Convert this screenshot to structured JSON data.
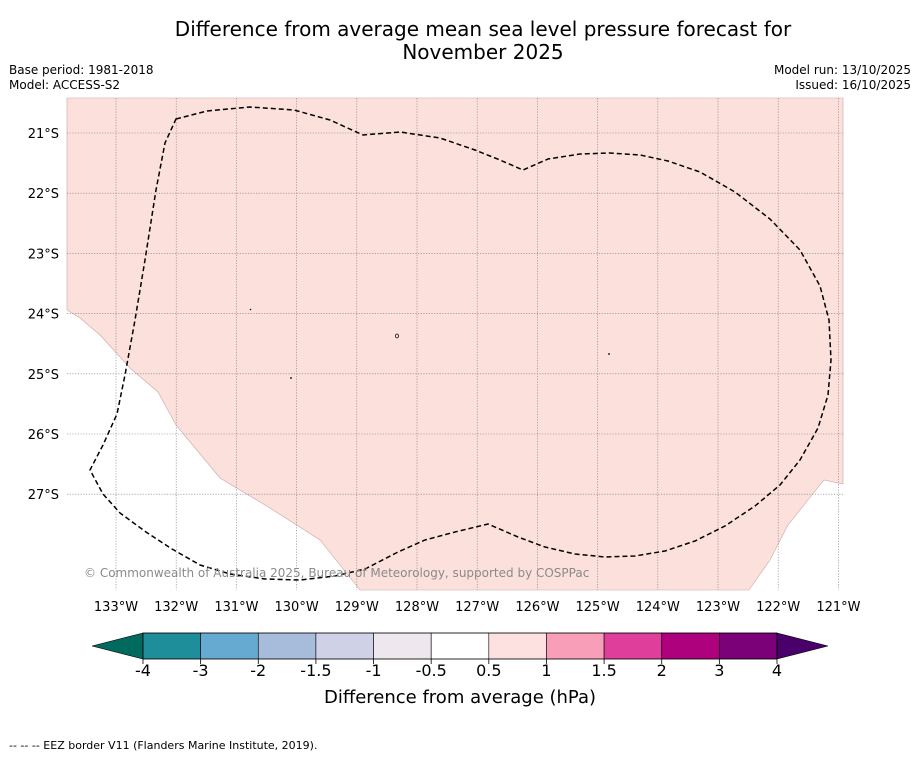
{
  "title": {
    "line1": "Difference from average mean sea level pressure forecast for",
    "line2": "November 2025"
  },
  "meta": {
    "base_period": "Base period: 1981-2018",
    "model": "Model: ACCESS-S2",
    "model_run": "Model run: 13/10/2025",
    "issued": "Issued: 16/10/2025"
  },
  "map": {
    "copyright": "© Commonwealth of Australia 2025, Bureau of Meteorology, supported by COSPPac",
    "fill_color": "#fce0dc",
    "lon_labels": [
      "133°W",
      "132°W",
      "131°W",
      "130°W",
      "129°W",
      "128°W",
      "127°W",
      "126°W",
      "125°W",
      "124°W",
      "123°W",
      "122°W",
      "121°W"
    ],
    "lat_labels": [
      "21°S",
      "22°S",
      "23°S",
      "24°S",
      "25°S",
      "26°S",
      "27°S"
    ]
  },
  "colorbar": {
    "label": "Difference from average (hPa)",
    "ticks": [
      "-4",
      "-3",
      "-2",
      "-1.5",
      "-1",
      "-0.5",
      "0.5",
      "1",
      "1.5",
      "2",
      "3",
      "4"
    ],
    "colors": [
      "#006a5e",
      "#1e8f9a",
      "#66a9d1",
      "#a7bbdb",
      "#cfd1e6",
      "#efe7ee",
      "#ffffff",
      "#fde0e0",
      "#f99eb8",
      "#df3e9a",
      "#ad017e",
      "#7a0177",
      "#49006a"
    ]
  },
  "footer": "-- -- -- EEZ border V11 (Flanders Marine Institute, 2019)."
}
